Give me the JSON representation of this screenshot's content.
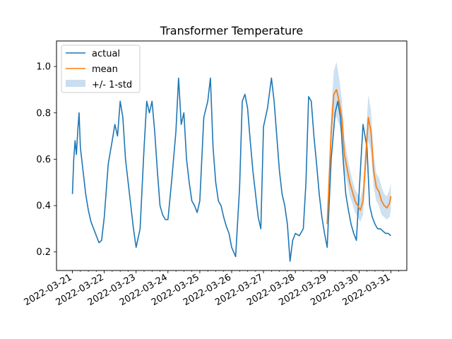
{
  "chart_data": {
    "type": "line",
    "title": "Transformer Temperature",
    "xlabel": "",
    "ylabel": "",
    "x_axis": "date",
    "xlim": [
      "2022-03-20T12:00",
      "2022-03-31T12:00"
    ],
    "ylim": [
      0.12,
      1.11
    ],
    "x_ticks": [
      "2022-03-21",
      "2022-03-22",
      "2022-03-23",
      "2022-03-24",
      "2022-03-25",
      "2022-03-26",
      "2022-03-27",
      "2022-03-28",
      "2022-03-29",
      "2022-03-30",
      "2022-03-31"
    ],
    "y_ticks": [
      "0.2",
      "0.4",
      "0.6",
      "0.8",
      "1.0"
    ],
    "minor_x_ticks": "every 6 hours",
    "grid": false,
    "legend_position": "top-left",
    "legend": [
      "actual",
      "mean",
      "+/- 1-std"
    ],
    "colors": {
      "actual": "#1f77b4",
      "mean": "#ff7f0e",
      "band": "#a6c8e6"
    },
    "series": [
      {
        "name": "actual",
        "x": [
          "2022-03-21T00:00",
          "2022-03-21T01:00",
          "2022-03-21T02:00",
          "2022-03-21T03:00",
          "2022-03-21T04:00",
          "2022-03-21T05:00",
          "2022-03-21T06:00",
          "2022-03-21T08:00",
          "2022-03-21T10:00",
          "2022-03-21T12:00",
          "2022-03-21T14:00",
          "2022-03-21T16:00",
          "2022-03-21T18:00",
          "2022-03-21T20:00",
          "2022-03-21T22:00",
          "2022-03-22T00:00",
          "2022-03-22T03:00",
          "2022-03-22T06:00",
          "2022-03-22T08:00",
          "2022-03-22T10:00",
          "2022-03-22T12:00",
          "2022-03-22T14:00",
          "2022-03-22T16:00",
          "2022-03-22T18:00",
          "2022-03-22T20:00",
          "2022-03-22T22:00",
          "2022-03-23T00:00",
          "2022-03-23T03:00",
          "2022-03-23T06:00",
          "2022-03-23T08:00",
          "2022-03-23T10:00",
          "2022-03-23T12:00",
          "2022-03-23T14:00",
          "2022-03-23T16:00",
          "2022-03-23T18:00",
          "2022-03-23T20:00",
          "2022-03-23T22:00",
          "2022-03-24T00:00",
          "2022-03-24T03:00",
          "2022-03-24T06:00",
          "2022-03-24T08:00",
          "2022-03-24T10:00",
          "2022-03-24T12:00",
          "2022-03-24T14:00",
          "2022-03-24T16:00",
          "2022-03-24T18:00",
          "2022-03-24T20:00",
          "2022-03-24T22:00",
          "2022-03-25T00:00",
          "2022-03-25T03:00",
          "2022-03-25T06:00",
          "2022-03-25T08:00",
          "2022-03-25T10:00",
          "2022-03-25T12:00",
          "2022-03-25T14:00",
          "2022-03-25T16:00",
          "2022-03-25T18:00",
          "2022-03-25T20:00",
          "2022-03-25T22:00",
          "2022-03-26T00:00",
          "2022-03-26T03:00",
          "2022-03-26T06:00",
          "2022-03-26T08:00",
          "2022-03-26T10:00",
          "2022-03-26T12:00",
          "2022-03-26T14:00",
          "2022-03-26T16:00",
          "2022-03-26T18:00",
          "2022-03-26T20:00",
          "2022-03-26T22:00",
          "2022-03-27T00:00",
          "2022-03-27T03:00",
          "2022-03-27T06:00",
          "2022-03-27T08:00",
          "2022-03-27T10:00",
          "2022-03-27T12:00",
          "2022-03-27T14:00",
          "2022-03-27T16:00",
          "2022-03-27T18:00",
          "2022-03-27T20:00",
          "2022-03-27T22:00",
          "2022-03-28T00:00",
          "2022-03-28T03:00",
          "2022-03-28T06:00",
          "2022-03-28T08:00",
          "2022-03-28T10:00",
          "2022-03-28T12:00",
          "2022-03-28T14:00",
          "2022-03-28T16:00",
          "2022-03-28T18:00",
          "2022-03-28T20:00",
          "2022-03-28T22:00",
          "2022-03-29T00:00",
          "2022-03-29T03:00",
          "2022-03-29T06:00",
          "2022-03-29T08:00",
          "2022-03-29T10:00",
          "2022-03-29T12:00",
          "2022-03-29T14:00",
          "2022-03-29T16:00",
          "2022-03-29T18:00",
          "2022-03-29T20:00",
          "2022-03-29T22:00",
          "2022-03-30T00:00",
          "2022-03-30T03:00",
          "2022-03-30T06:00",
          "2022-03-30T08:00",
          "2022-03-30T10:00",
          "2022-03-30T12:00",
          "2022-03-30T14:00",
          "2022-03-30T16:00",
          "2022-03-30T18:00",
          "2022-03-30T20:00",
          "2022-03-30T22:00",
          "2022-03-31T00:00"
        ],
        "values": [
          0.45,
          0.6,
          0.68,
          0.62,
          0.72,
          0.8,
          0.65,
          0.55,
          0.45,
          0.38,
          0.33,
          0.3,
          0.27,
          0.24,
          0.25,
          0.35,
          0.58,
          0.68,
          0.75,
          0.7,
          0.85,
          0.78,
          0.6,
          0.5,
          0.4,
          0.3,
          0.22,
          0.3,
          0.65,
          0.85,
          0.8,
          0.85,
          0.72,
          0.55,
          0.4,
          0.36,
          0.34,
          0.34,
          0.52,
          0.72,
          0.95,
          0.75,
          0.8,
          0.6,
          0.5,
          0.42,
          0.4,
          0.37,
          0.42,
          0.78,
          0.85,
          0.95,
          0.65,
          0.5,
          0.42,
          0.4,
          0.35,
          0.31,
          0.28,
          0.22,
          0.18,
          0.48,
          0.85,
          0.88,
          0.82,
          0.68,
          0.55,
          0.45,
          0.35,
          0.3,
          0.74,
          0.82,
          0.95,
          0.85,
          0.7,
          0.55,
          0.45,
          0.4,
          0.32,
          0.16,
          0.25,
          0.28,
          0.27,
          0.3,
          0.5,
          0.87,
          0.85,
          0.7,
          0.58,
          0.45,
          0.35,
          0.28,
          0.22,
          0.6,
          0.8,
          0.85,
          0.78,
          0.6,
          0.45,
          0.38,
          0.32,
          0.28,
          0.25,
          0.45,
          0.75,
          0.65,
          0.4,
          0.35,
          0.32,
          0.3,
          0.3,
          0.29,
          0.28,
          0.28,
          0.27
        ]
      },
      {
        "name": "mean",
        "x": [
          "2022-03-29T00:00",
          "2022-03-29T01:00",
          "2022-03-29T03:00",
          "2022-03-29T05:00",
          "2022-03-29T07:00",
          "2022-03-29T09:00",
          "2022-03-29T11:00",
          "2022-03-29T13:00",
          "2022-03-29T15:00",
          "2022-03-29T17:00",
          "2022-03-29T19:00",
          "2022-03-29T21:00",
          "2022-03-29T23:00",
          "2022-03-30T01:00",
          "2022-03-30T03:00",
          "2022-03-30T05:00",
          "2022-03-30T07:00",
          "2022-03-30T09:00",
          "2022-03-30T11:00",
          "2022-03-30T13:00",
          "2022-03-30T15:00",
          "2022-03-30T17:00",
          "2022-03-30T19:00",
          "2022-03-30T21:00",
          "2022-03-30T23:00",
          "2022-03-31T00:00"
        ],
        "values": [
          0.32,
          0.45,
          0.72,
          0.88,
          0.9,
          0.85,
          0.78,
          0.62,
          0.56,
          0.5,
          0.46,
          0.42,
          0.4,
          0.38,
          0.42,
          0.6,
          0.78,
          0.72,
          0.55,
          0.48,
          0.46,
          0.42,
          0.4,
          0.39,
          0.41,
          0.44
        ],
        "std": [
          0.03,
          0.05,
          0.08,
          0.1,
          0.12,
          0.1,
          0.08,
          0.07,
          0.06,
          0.06,
          0.05,
          0.05,
          0.05,
          0.05,
          0.06,
          0.08,
          0.1,
          0.09,
          0.07,
          0.06,
          0.06,
          0.06,
          0.05,
          0.05,
          0.06,
          0.06
        ]
      }
    ]
  }
}
